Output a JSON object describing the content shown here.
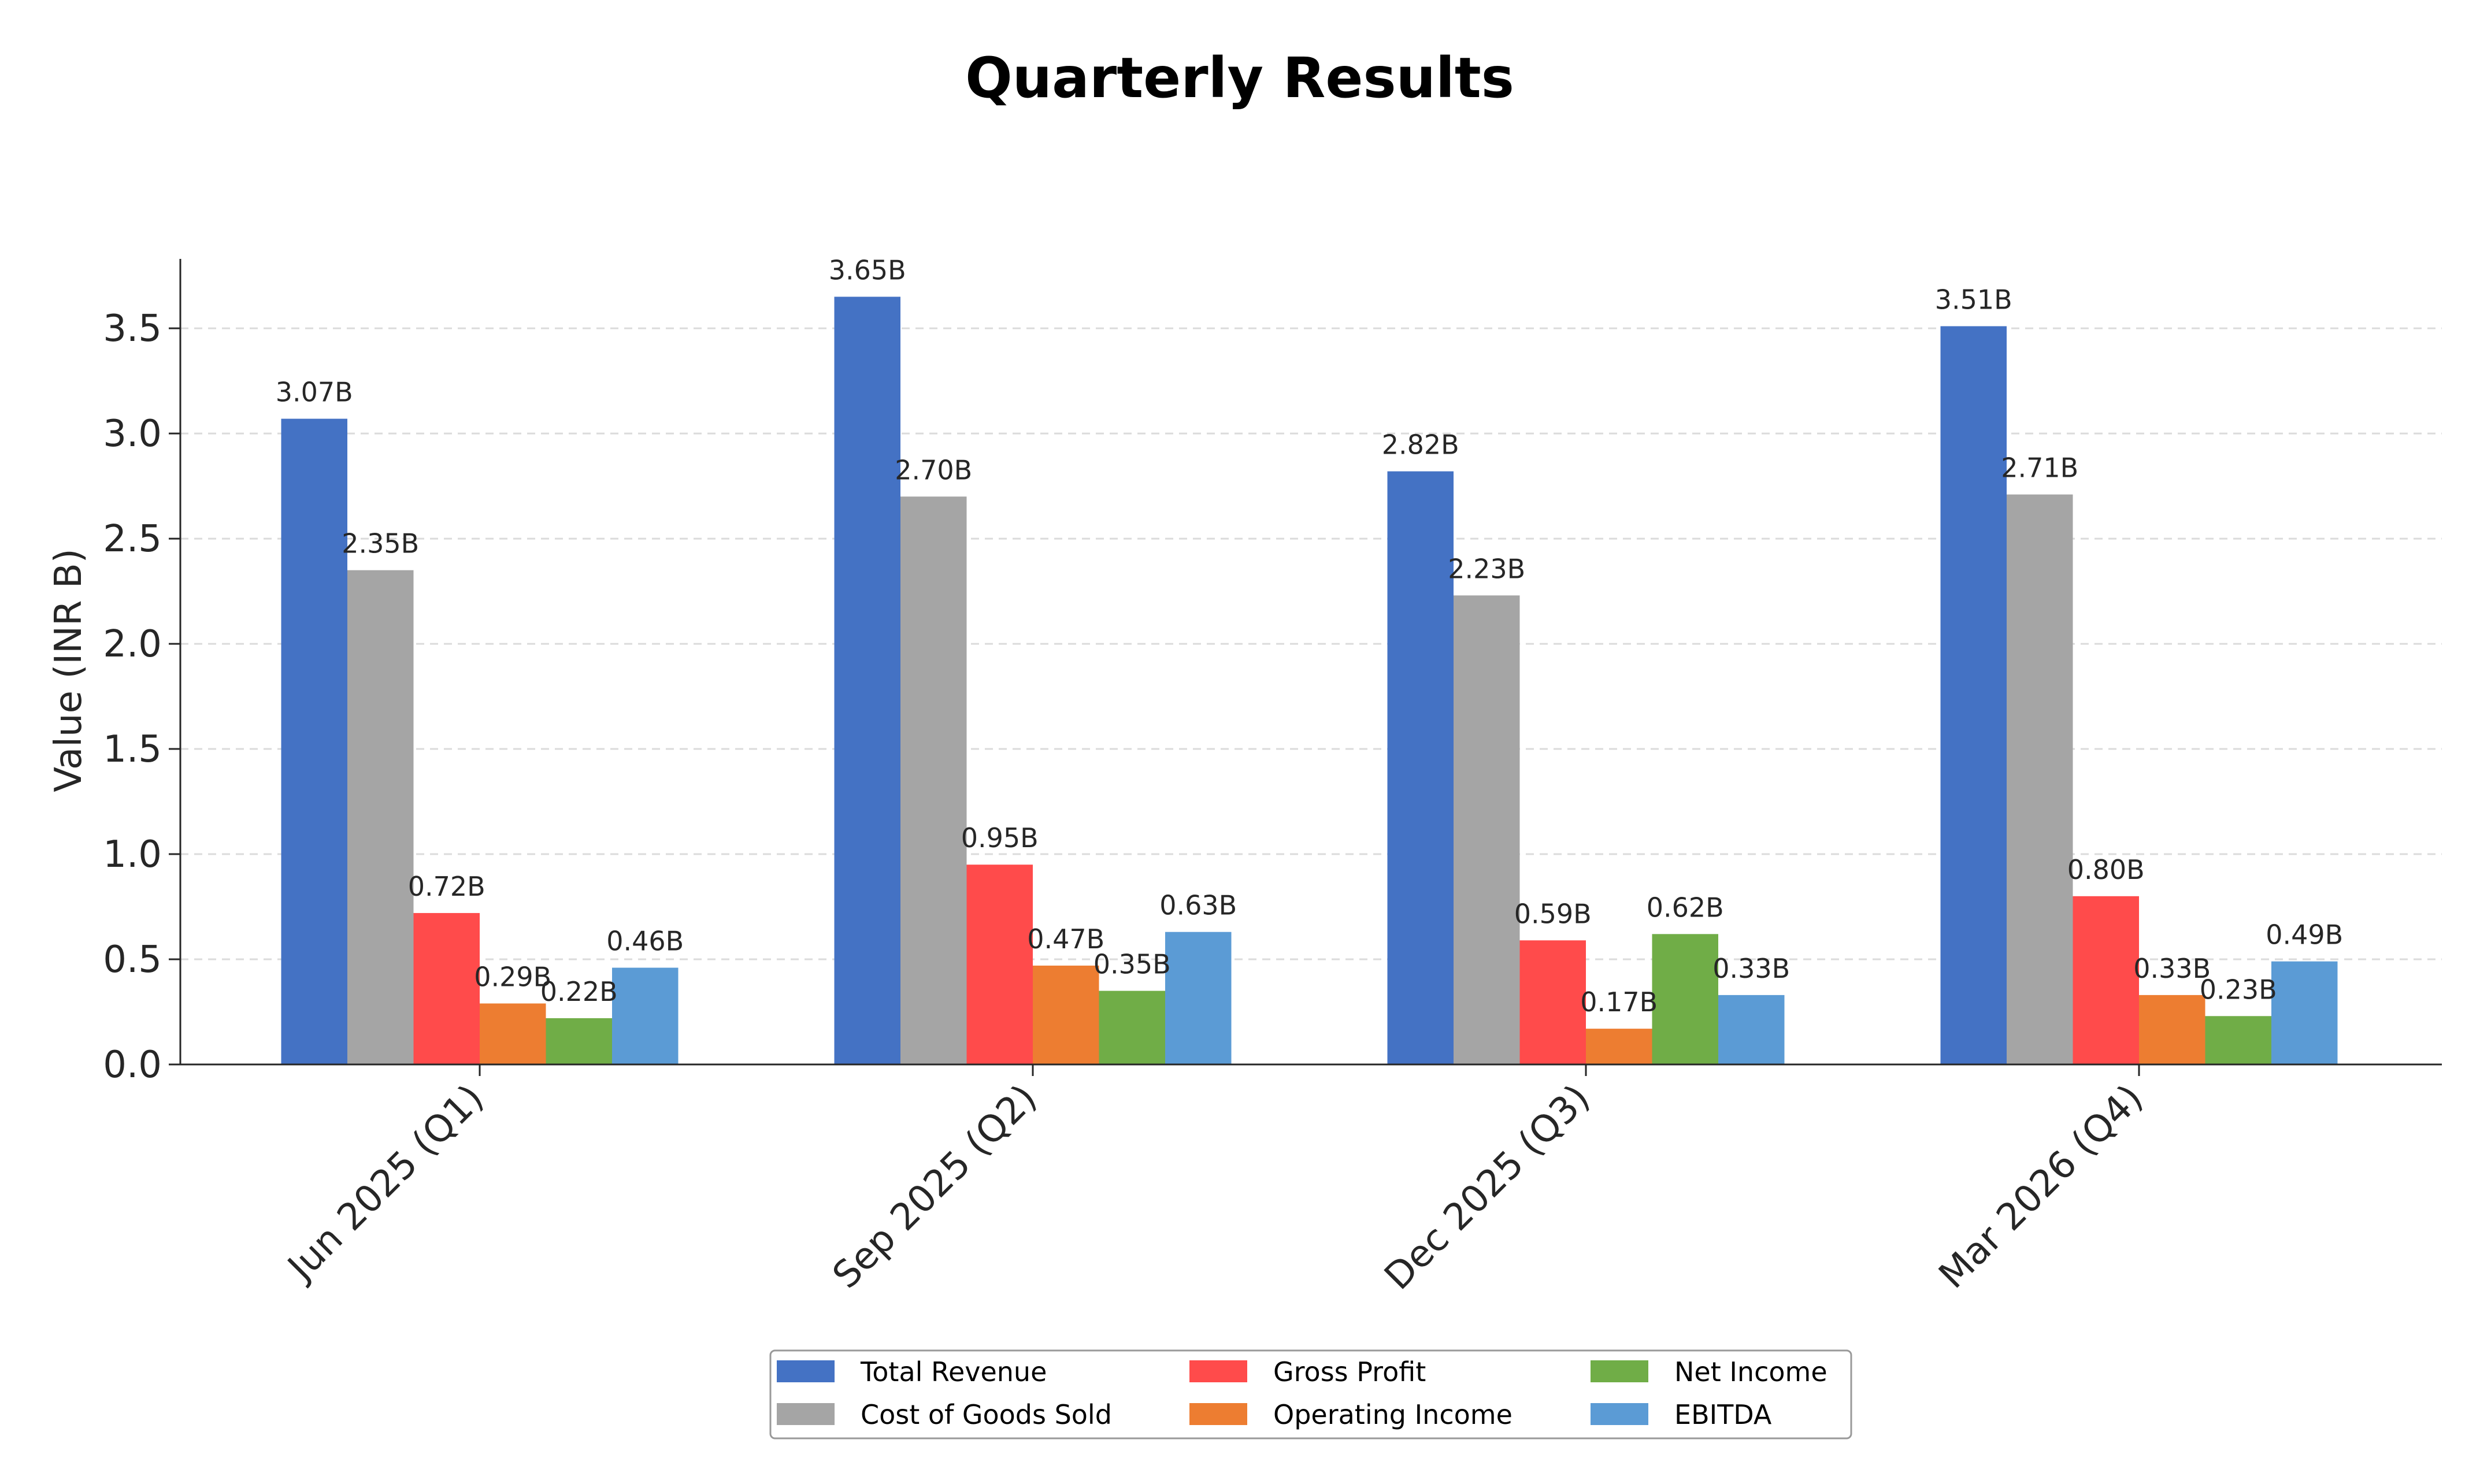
{
  "chart_data": {
    "type": "bar",
    "title": "Quarterly Results",
    "xlabel": "",
    "ylabel": "Value (INR B)",
    "ylim": [
      0,
      3.83
    ],
    "yticks": [
      0.0,
      0.5,
      1.0,
      1.5,
      2.0,
      2.5,
      3.0,
      3.5
    ],
    "ytick_labels": [
      "0.0",
      "0.5",
      "1.0",
      "1.5",
      "2.0",
      "2.5",
      "3.0",
      "3.5"
    ],
    "grid": "horizontal dashed",
    "legend_position": "bottom-center",
    "categories": [
      "Jun 2025 (Q1)",
      "Sep 2025 (Q2)",
      "Dec 2025 (Q3)",
      "Mar 2026 (Q4)"
    ],
    "series": [
      {
        "name": "Total Revenue",
        "color": "#4472C4",
        "values": [
          3.07,
          3.65,
          2.82,
          3.51
        ],
        "labels": [
          "3.07B",
          "3.65B",
          "2.82B",
          "3.51B"
        ]
      },
      {
        "name": "Cost of Goods Sold",
        "color": "#A5A5A5",
        "values": [
          2.35,
          2.7,
          2.23,
          2.71
        ],
        "labels": [
          "2.35B",
          "2.70B",
          "2.23B",
          "2.71B"
        ]
      },
      {
        "name": "Gross Profit",
        "color": "#FF4B4B",
        "values": [
          0.72,
          0.95,
          0.59,
          0.8
        ],
        "labels": [
          "0.72B",
          "0.95B",
          "0.59B",
          "0.80B"
        ]
      },
      {
        "name": "Operating Income",
        "color": "#ED7D31",
        "values": [
          0.29,
          0.47,
          0.17,
          0.33
        ],
        "labels": [
          "0.29B",
          "0.47B",
          "0.17B",
          "0.33B"
        ]
      },
      {
        "name": "Net Income",
        "color": "#70AD47",
        "values": [
          0.22,
          0.35,
          0.62,
          0.23
        ],
        "labels": [
          "0.22B",
          "0.35B",
          "0.62B",
          "0.23B"
        ]
      },
      {
        "name": "EBITDA",
        "color": "#5B9BD5",
        "values": [
          0.46,
          0.63,
          0.33,
          0.49
        ],
        "labels": [
          "0.46B",
          "0.63B",
          "0.33B",
          "0.49B"
        ]
      }
    ]
  }
}
